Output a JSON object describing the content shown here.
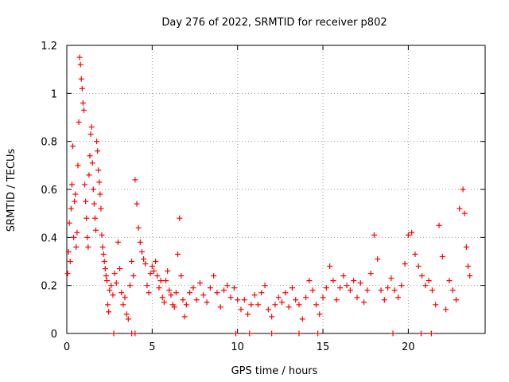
{
  "chart_data": {
    "type": "scatter",
    "title": "Day 276 of 2022, SRMTID for receiver p802",
    "xlabel": "GPS time / hours",
    "ylabel": "SRMTID / TECUs",
    "xlim": [
      0,
      24.5
    ],
    "ylim": [
      0,
      1.2
    ],
    "grid": true,
    "marker": "+",
    "color": "#ff0000",
    "x_ticks": [
      0,
      5,
      10,
      15,
      20
    ],
    "x_tick_labels": [
      "0",
      "5",
      "10",
      "15",
      "20"
    ],
    "y_ticks": [
      0,
      0.2,
      0.4,
      0.6,
      0.8,
      1,
      1.2
    ],
    "y_tick_labels": [
      "0",
      "0.2",
      "0.4",
      "0.6",
      "0.8",
      "1",
      "1.2"
    ],
    "series": [
      {
        "name": "SRMTID",
        "points": [
          [
            0.05,
            0.25
          ],
          [
            0.1,
            0.34
          ],
          [
            0.15,
            0.46
          ],
          [
            0.2,
            0.3
          ],
          [
            0.25,
            0.52
          ],
          [
            0.3,
            0.62
          ],
          [
            0.35,
            0.78
          ],
          [
            0.4,
            0.4
          ],
          [
            0.45,
            0.55
          ],
          [
            0.5,
            0.58
          ],
          [
            0.55,
            0.36
          ],
          [
            0.6,
            0.42
          ],
          [
            0.65,
            0.7
          ],
          [
            0.7,
            0.88
          ],
          [
            0.75,
            1.15
          ],
          [
            0.8,
            1.12
          ],
          [
            0.85,
            1.06
          ],
          [
            0.9,
            1.02
          ],
          [
            0.95,
            0.96
          ],
          [
            1.0,
            0.93
          ],
          [
            1.05,
            0.62
          ],
          [
            1.1,
            0.55
          ],
          [
            1.15,
            0.48
          ],
          [
            1.2,
            0.4
          ],
          [
            1.25,
            0.36
          ],
          [
            1.3,
            0.66
          ],
          [
            1.35,
            0.74
          ],
          [
            1.4,
            0.83
          ],
          [
            1.45,
            0.86
          ],
          [
            1.5,
            0.71
          ],
          [
            1.55,
            0.6
          ],
          [
            1.6,
            0.54
          ],
          [
            1.65,
            0.48
          ],
          [
            1.7,
            0.43
          ],
          [
            1.75,
            0.8
          ],
          [
            1.8,
            0.76
          ],
          [
            1.85,
            0.68
          ],
          [
            1.9,
            0.63
          ],
          [
            1.95,
            0.58
          ],
          [
            2.0,
            0.52
          ],
          [
            2.05,
            0.41
          ],
          [
            2.1,
            0.36
          ],
          [
            2.15,
            0.33
          ],
          [
            2.2,
            0.3
          ],
          [
            2.25,
            0.27
          ],
          [
            2.3,
            0.24
          ],
          [
            2.35,
            0.22
          ],
          [
            2.4,
            0.12
          ],
          [
            2.45,
            0.09
          ],
          [
            2.5,
            0.18
          ],
          [
            2.6,
            0.2
          ],
          [
            2.7,
            0.16
          ],
          [
            2.8,
            0.25
          ],
          [
            2.9,
            0.21
          ],
          [
            3.0,
            0.38
          ],
          [
            3.1,
            0.27
          ],
          [
            3.2,
            0.17
          ],
          [
            3.3,
            0.12
          ],
          [
            3.4,
            0.15
          ],
          [
            3.5,
            0.08
          ],
          [
            3.6,
            0.06
          ],
          [
            3.7,
            0.2
          ],
          [
            3.8,
            0.3
          ],
          [
            3.9,
            0.24
          ],
          [
            4.0,
            0.64
          ],
          [
            4.1,
            0.54
          ],
          [
            4.2,
            0.44
          ],
          [
            4.3,
            0.38
          ],
          [
            4.4,
            0.34
          ],
          [
            4.5,
            0.31
          ],
          [
            4.6,
            0.29
          ],
          [
            4.7,
            0.2
          ],
          [
            4.8,
            0.17
          ],
          [
            4.9,
            0.25
          ],
          [
            5.0,
            0.28
          ],
          [
            5.1,
            0.26
          ],
          [
            5.2,
            0.3
          ],
          [
            5.3,
            0.24
          ],
          [
            5.4,
            0.19
          ],
          [
            5.5,
            0.22
          ],
          [
            5.6,
            0.15
          ],
          [
            5.7,
            0.13
          ],
          [
            5.8,
            0.22
          ],
          [
            5.9,
            0.26
          ],
          [
            6.0,
            0.18
          ],
          [
            6.1,
            0.16
          ],
          [
            6.2,
            0.12
          ],
          [
            6.3,
            0.11
          ],
          [
            6.4,
            0.17
          ],
          [
            6.5,
            0.33
          ],
          [
            6.6,
            0.48
          ],
          [
            6.7,
            0.24
          ],
          [
            6.8,
            0.14
          ],
          [
            6.9,
            0.07
          ],
          [
            7.0,
            0.12
          ],
          [
            7.2,
            0.17
          ],
          [
            7.4,
            0.19
          ],
          [
            7.6,
            0.14
          ],
          [
            7.8,
            0.21
          ],
          [
            8.0,
            0.16
          ],
          [
            8.2,
            0.13
          ],
          [
            8.4,
            0.19
          ],
          [
            8.6,
            0.24
          ],
          [
            8.8,
            0.17
          ],
          [
            9.0,
            0.11
          ],
          [
            9.2,
            0.18
          ],
          [
            9.4,
            0.2
          ],
          [
            9.6,
            0.15
          ],
          [
            9.8,
            0.19
          ],
          [
            10.0,
            0.14
          ],
          [
            10.2,
            0.1
          ],
          [
            10.4,
            0.14
          ],
          [
            10.6,
            0.08
          ],
          [
            10.8,
            0.12
          ],
          [
            11.0,
            0.16
          ],
          [
            11.2,
            0.12
          ],
          [
            11.4,
            0.17
          ],
          [
            11.6,
            0.2
          ],
          [
            11.8,
            0.1
          ],
          [
            12.0,
            0.07
          ],
          [
            12.2,
            0.12
          ],
          [
            12.4,
            0.15
          ],
          [
            12.6,
            0.13
          ],
          [
            12.8,
            0.17
          ],
          [
            13.0,
            0.11
          ],
          [
            13.2,
            0.19
          ],
          [
            13.4,
            0.14
          ],
          [
            13.6,
            0.12
          ],
          [
            13.8,
            0.06
          ],
          [
            14.0,
            0.15
          ],
          [
            14.2,
            0.22
          ],
          [
            14.4,
            0.18
          ],
          [
            14.6,
            0.12
          ],
          [
            14.8,
            0.08
          ],
          [
            15.0,
            0.15
          ],
          [
            15.2,
            0.19
          ],
          [
            15.4,
            0.28
          ],
          [
            15.6,
            0.22
          ],
          [
            15.8,
            0.14
          ],
          [
            16.0,
            0.19
          ],
          [
            16.2,
            0.24
          ],
          [
            16.4,
            0.2
          ],
          [
            16.6,
            0.18
          ],
          [
            16.8,
            0.22
          ],
          [
            17.0,
            0.15
          ],
          [
            17.2,
            0.21
          ],
          [
            17.4,
            0.13
          ],
          [
            17.6,
            0.18
          ],
          [
            17.8,
            0.25
          ],
          [
            18.0,
            0.41
          ],
          [
            18.2,
            0.31
          ],
          [
            18.4,
            0.18
          ],
          [
            18.6,
            0.14
          ],
          [
            18.8,
            0.19
          ],
          [
            19.0,
            0.23
          ],
          [
            19.2,
            0.18
          ],
          [
            19.4,
            0.15
          ],
          [
            19.6,
            0.2
          ],
          [
            19.8,
            0.29
          ],
          [
            20.0,
            0.41
          ],
          [
            20.2,
            0.42
          ],
          [
            20.4,
            0.33
          ],
          [
            20.6,
            0.28
          ],
          [
            20.8,
            0.24
          ],
          [
            21.0,
            0.2
          ],
          [
            21.2,
            0.22
          ],
          [
            21.4,
            0.18
          ],
          [
            21.6,
            0.12
          ],
          [
            21.8,
            0.45
          ],
          [
            22.0,
            0.32
          ],
          [
            22.2,
            0.1
          ],
          [
            22.4,
            0.22
          ],
          [
            22.6,
            0.18
          ],
          [
            22.8,
            0.14
          ],
          [
            23.0,
            0.52
          ],
          [
            23.2,
            0.6
          ],
          [
            23.3,
            0.5
          ],
          [
            23.4,
            0.36
          ],
          [
            23.5,
            0.28
          ],
          [
            23.6,
            0.24
          ],
          [
            2.75,
            0.0
          ],
          [
            3.8,
            0.0
          ],
          [
            4.0,
            0.0
          ],
          [
            9.9,
            0.0
          ],
          [
            10.7,
            0.0
          ],
          [
            12.0,
            0.0
          ],
          [
            13.6,
            0.0
          ],
          [
            14.7,
            0.0
          ],
          [
            19.1,
            0.0
          ],
          [
            20.75,
            0.0
          ],
          [
            21.35,
            0.0
          ]
        ]
      }
    ]
  }
}
